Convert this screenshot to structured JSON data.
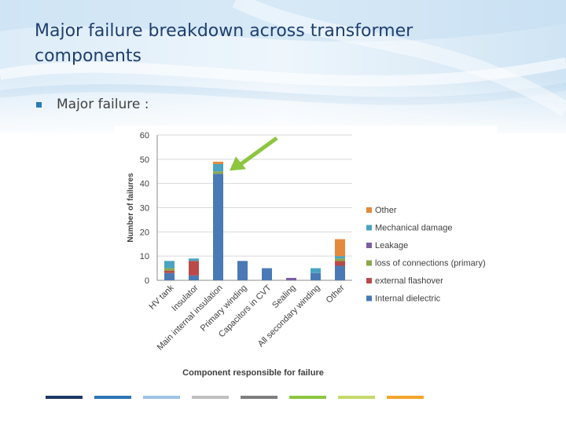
{
  "slide": {
    "title": "Major failure breakdown across transformer components",
    "bullet": "Major failure :"
  },
  "colors": {
    "title": "#1f3f6e",
    "bullet_marker": "#2a7bb8",
    "arrow": "#8cc63f",
    "footer": [
      "#1f3864",
      "#2e75b6",
      "#9dc3e6",
      "#bfbfbf",
      "#7f7f7f",
      "#8cc63f",
      "#c5d96b",
      "#f4a52a"
    ]
  },
  "chart_data": {
    "type": "bar",
    "stacked": true,
    "title": "",
    "xlabel": "Component responsible for failure",
    "ylabel": "Number of failures",
    "ylim": [
      0,
      60
    ],
    "yticks": [
      0,
      10,
      20,
      30,
      40,
      50,
      60
    ],
    "grid": true,
    "legend_position": "right",
    "categories": [
      "HV tank",
      "Insulator",
      "Main internal insulation",
      "Primary winding",
      "Capacitors in CVT",
      "Sealing",
      "All secondary winding",
      "Other"
    ],
    "series": [
      {
        "name": "Internal dielectric",
        "color": "#4a7ab5",
        "values": [
          3,
          2,
          44,
          8,
          5,
          0,
          3,
          6
        ]
      },
      {
        "name": "external flashover",
        "color": "#b94a48",
        "values": [
          1,
          6,
          0,
          0,
          0,
          0,
          0,
          2
        ]
      },
      {
        "name": "loss of connections (primary)",
        "color": "#8aa84a",
        "values": [
          1,
          0,
          1,
          0,
          0,
          0,
          0,
          1
        ]
      },
      {
        "name": "Leakage",
        "color": "#7b5fa0",
        "values": [
          0,
          0,
          0,
          0,
          0,
          1,
          0,
          0
        ]
      },
      {
        "name": "Mechanical damage",
        "color": "#4aa3c1",
        "values": [
          3,
          1,
          3,
          0,
          0,
          0,
          2,
          1
        ]
      },
      {
        "name": "Other",
        "color": "#e58a3c",
        "values": [
          0,
          0,
          1,
          0,
          0,
          0,
          0,
          7
        ]
      }
    ],
    "annotation": {
      "type": "arrow",
      "points_to": "Main internal insulation",
      "color": "#8cc63f"
    }
  }
}
